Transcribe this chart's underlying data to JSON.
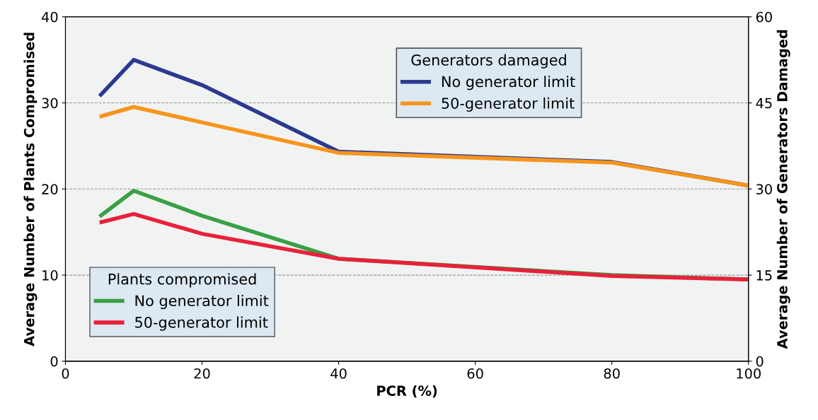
{
  "chart_data": {
    "type": "line",
    "xlabel": "PCR (%)",
    "ylabel": "Average Number of Plants Compromised",
    "y2label": "Average Number of Generators Damaged",
    "x": [
      5,
      10,
      20,
      40,
      80,
      100
    ],
    "series": [
      {
        "name": "No generator limit",
        "color": "#2b3990",
        "axis": "y2",
        "values": [
          46.2,
          52.5,
          48.1,
          36.5,
          34.7,
          30.6
        ]
      },
      {
        "name": "50-generator limit",
        "color": "#f7941d",
        "axis": "y2",
        "values": [
          42.6,
          44.3,
          41.6,
          36.3,
          34.6,
          30.6
        ]
      },
      {
        "name": "No generator limit",
        "color": "#39a045",
        "values": [
          16.8,
          19.8,
          16.9,
          11.9,
          10.0,
          9.5
        ]
      },
      {
        "name": "50-generator limit",
        "color": "#e8213a",
        "values": [
          16.1,
          17.1,
          14.8,
          11.9,
          9.9,
          9.5
        ]
      }
    ],
    "legend_title": [
      "Plants compromised",
      "Generators damaged"
    ],
    "legend": [
      "bottom left",
      "upper center"
    ],
    "xlim": [
      0,
      100
    ],
    "xticks": [
      0,
      20,
      40,
      60,
      80,
      100
    ],
    "ylim": [
      0,
      40
    ],
    "yticks": [
      0,
      10,
      20,
      30,
      40
    ],
    "y2lim": [
      0,
      60
    ],
    "y2ticks": [
      0,
      15,
      30,
      45,
      60
    ],
    "grid": "y",
    "marker": "none",
    "line_style": "solid"
  }
}
